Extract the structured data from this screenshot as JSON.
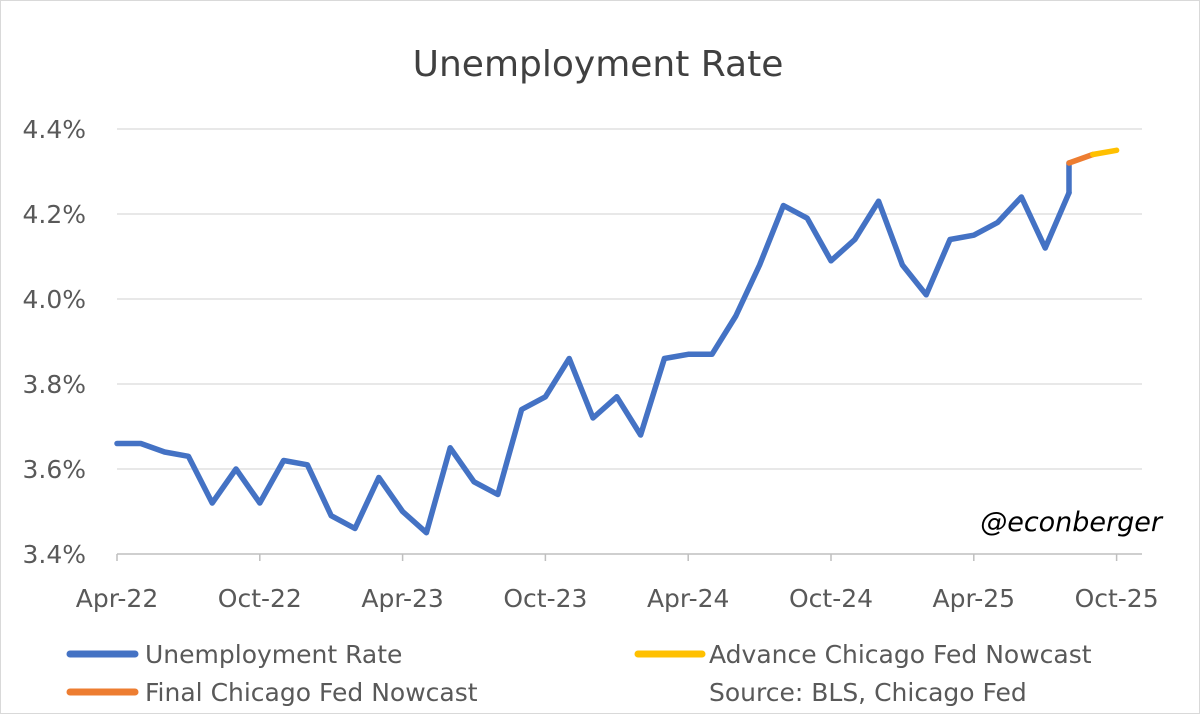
{
  "chart_data": {
    "type": "line",
    "title": "Unemployment Rate",
    "xlabel": "",
    "ylabel": "",
    "ylim": [
      3.4,
      4.4
    ],
    "yticks": [
      3.4,
      3.6,
      3.8,
      4.0,
      4.2,
      4.4
    ],
    "ytick_labels": [
      "3.4%",
      "3.6%",
      "3.8%",
      "4.0%",
      "4.2%",
      "4.4%"
    ],
    "xtick_labels": [
      "Apr-22",
      "Oct-22",
      "Apr-23",
      "Oct-23",
      "Apr-24",
      "Oct-24",
      "Apr-25",
      "Oct-25"
    ],
    "x_dates": [
      "Apr-22",
      "May-22",
      "Jun-22",
      "Jul-22",
      "Aug-22",
      "Sep-22",
      "Oct-22",
      "Nov-22",
      "Dec-22",
      "Jan-23",
      "Feb-23",
      "Mar-23",
      "Apr-23",
      "May-23",
      "Jun-23",
      "Jul-23",
      "Aug-23",
      "Sep-23",
      "Oct-23",
      "Nov-23",
      "Dec-23",
      "Jan-24",
      "Feb-24",
      "Mar-24",
      "Apr-24",
      "May-24",
      "Jun-24",
      "Jul-24",
      "Aug-24",
      "Sep-24",
      "Oct-24",
      "Nov-24",
      "Dec-24",
      "Jan-25",
      "Feb-25",
      "Mar-25",
      "Apr-25",
      "May-25",
      "Jun-25",
      "Jul-25",
      "Aug-25",
      "Sep-25",
      "Oct-25"
    ],
    "grid": true,
    "series": [
      {
        "name": "Unemployment Rate",
        "color": "#4472C4",
        "x": [
          "Apr-22",
          "May-22",
          "Jun-22",
          "Jul-22",
          "Aug-22",
          "Sep-22",
          "Oct-22",
          "Nov-22",
          "Dec-22",
          "Jan-23",
          "Feb-23",
          "Mar-23",
          "Apr-23",
          "May-23",
          "Jun-23",
          "Jul-23",
          "Aug-23",
          "Sep-23",
          "Oct-23",
          "Nov-23",
          "Dec-23",
          "Jan-24",
          "Feb-24",
          "Mar-24",
          "Apr-24",
          "May-24",
          "Jun-24",
          "Jul-24",
          "Aug-24",
          "Sep-24",
          "Oct-24",
          "Nov-24",
          "Dec-24",
          "Jan-25",
          "Feb-25",
          "Mar-25",
          "Apr-25",
          "May-25",
          "Jun-25",
          "Jul-25",
          "Aug-25"
        ],
        "values": [
          3.66,
          3.66,
          3.64,
          3.63,
          3.52,
          3.6,
          3.52,
          3.62,
          3.61,
          3.49,
          3.46,
          3.58,
          3.5,
          3.45,
          3.65,
          3.57,
          3.54,
          3.74,
          3.77,
          3.86,
          3.72,
          3.77,
          3.68,
          3.86,
          3.87,
          3.87,
          3.96,
          4.08,
          4.22,
          4.19,
          4.09,
          4.14,
          4.23,
          4.08,
          4.01,
          4.14,
          4.15,
          4.18,
          4.24,
          4.12,
          4.25
        ]
      },
      {
        "name": "Final Chicago Fed Nowcast",
        "color": "#ED7D31",
        "x": [
          "Aug-25",
          "Sep-25"
        ],
        "values": [
          4.32,
          4.34
        ]
      },
      {
        "name": "Advance Chicago Fed Nowcast",
        "color": "#FFC000",
        "x": [
          "Sep-25",
          "Oct-25"
        ],
        "values": [
          4.34,
          4.35
        ]
      }
    ],
    "legend": {
      "placement": "bottom",
      "items": [
        {
          "label": "Unemployment Rate",
          "color": "#4472C4"
        },
        {
          "label": "Advance Chicago Fed Nowcast",
          "color": "#FFC000"
        },
        {
          "label": "Final Chicago Fed Nowcast",
          "color": "#ED7D31"
        }
      ]
    },
    "source": "Source: BLS, Chicago Fed",
    "watermark": "@econberger"
  }
}
